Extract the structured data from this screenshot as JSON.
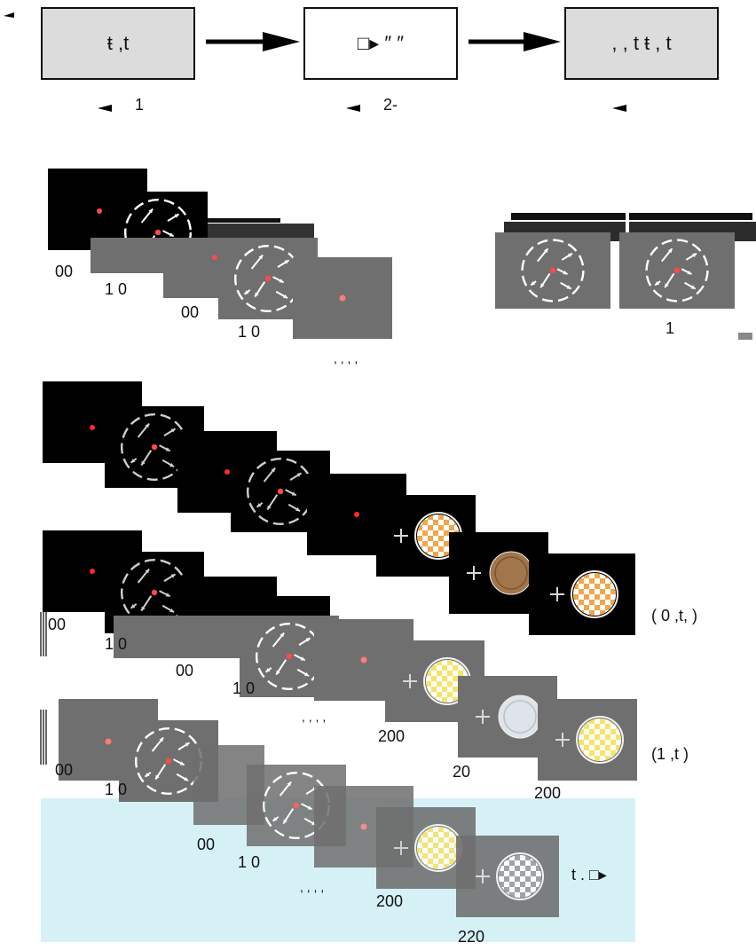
{
  "flow": {
    "box1_text": "ŧ  ,t",
    "box2_text": "□▸ ″ ″",
    "box3_text": ", , t ŧ  , t",
    "label1": "1",
    "label2": "2-",
    "label3": ""
  },
  "section_a": {
    "time_labels": [
      "00",
      "1 0",
      "00",
      "1 0",
      ", , , ,"
    ],
    "right_label": "1"
  },
  "section_b": {
    "right_label_1": "( 0   ,t, )"
  },
  "section_c": {
    "time_labels": [
      "00",
      "1 0",
      "00",
      "1 0",
      ", , , ,"
    ],
    "right_label": "(1    ,t )",
    "stim_labels": [
      "200",
      "20",
      "200"
    ]
  },
  "section_d": {
    "time_labels": [
      "00",
      "1 0",
      "00",
      "1 0",
      ", , , ,",
      "200",
      "220"
    ],
    "right_label": "t  .  □▸"
  },
  "colors": {
    "fixation": "#ff4a4a",
    "black_screen": "#000000",
    "gray_screen": "#6f6f6f",
    "coin_orange": "#f0a64a",
    "coin_yellow": "#f7e36b",
    "highlight_band": "#cfeff5"
  }
}
